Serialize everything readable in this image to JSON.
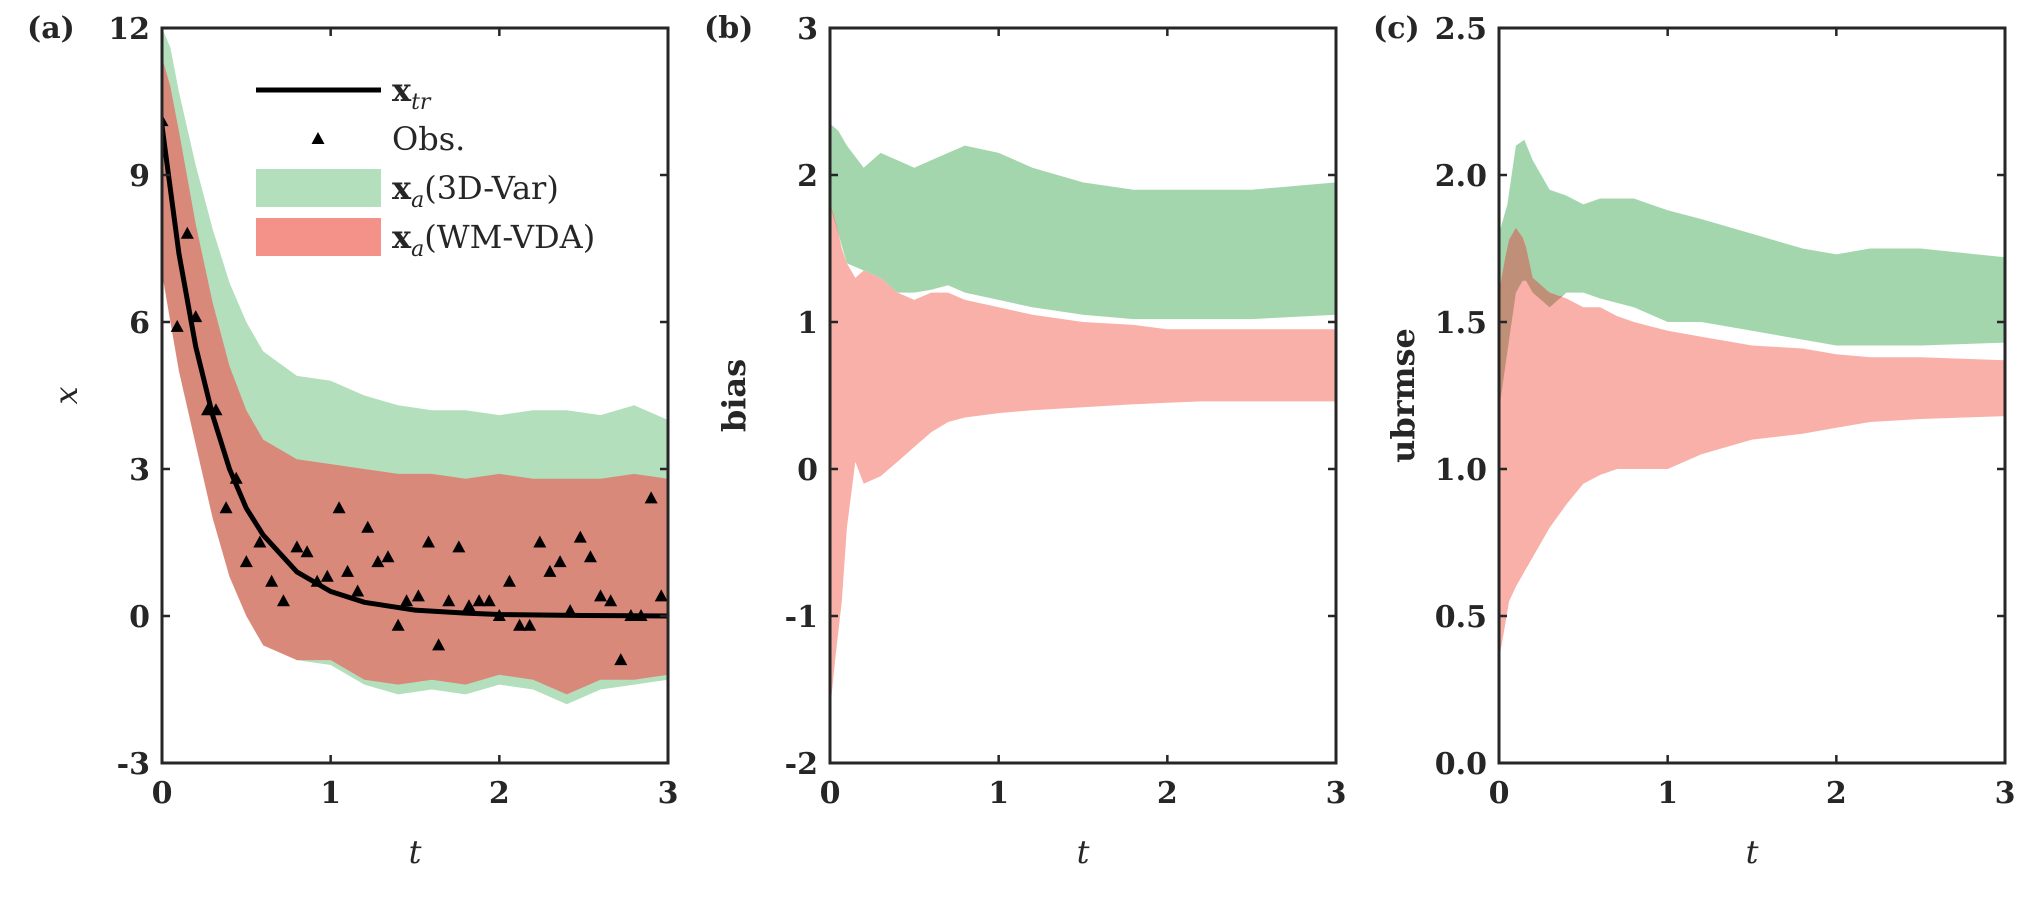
{
  "chart_data": [
    {
      "panel": "(a)",
      "type": "area",
      "xlabel": "t",
      "ylabel": "x",
      "xlim": [
        0,
        3
      ],
      "ylim": [
        -3,
        12
      ],
      "xticks": [
        "0",
        "1",
        "2",
        "3"
      ],
      "yticks": [
        "-3",
        "0",
        "3",
        "6",
        "9",
        "12"
      ],
      "legend": [
        {
          "key": "xtr",
          "text": "x",
          "sub": "tr",
          "color": "#000000"
        },
        {
          "key": "obs",
          "text": "Obs.",
          "color": "#000000"
        },
        {
          "key": "3dvar",
          "text": "x",
          "sub": "a",
          "suffix": "(3D-Var)",
          "color": "#b3dfbc"
        },
        {
          "key": "wmvda",
          "text": "x",
          "sub": "a",
          "suffix": "(WM-VDA)",
          "color": "#f4928a"
        }
      ],
      "series": [
        {
          "name": "x_a(3D-Var)",
          "kind": "band",
          "color": "#b3dfbc",
          "x": [
            0,
            0.05,
            0.1,
            0.2,
            0.3,
            0.4,
            0.5,
            0.6,
            0.8,
            1.0,
            1.2,
            1.4,
            1.6,
            1.8,
            2.0,
            2.2,
            2.4,
            2.6,
            2.8,
            3.0
          ],
          "upper": [
            12,
            11.6,
            10.7,
            9.2,
            7.9,
            6.8,
            6.0,
            5.4,
            4.9,
            4.8,
            4.5,
            4.3,
            4.2,
            4.2,
            4.1,
            4.2,
            4.2,
            4.1,
            4.3,
            4.0
          ],
          "lower": [
            7.4,
            6.4,
            5.4,
            3.8,
            2.4,
            1.2,
            0.2,
            -0.5,
            -0.9,
            -1.0,
            -1.4,
            -1.6,
            -1.5,
            -1.6,
            -1.4,
            -1.5,
            -1.8,
            -1.5,
            -1.4,
            -1.3
          ]
        },
        {
          "name": "x_a(WM-VDA)",
          "kind": "band",
          "color": "#d9897a",
          "x": [
            0,
            0.05,
            0.1,
            0.2,
            0.3,
            0.4,
            0.5,
            0.6,
            0.8,
            1.0,
            1.2,
            1.4,
            1.6,
            1.8,
            2.0,
            2.2,
            2.4,
            2.6,
            2.8,
            3.0
          ],
          "upper": [
            11.4,
            10.8,
            9.9,
            8.0,
            6.4,
            5.1,
            4.2,
            3.6,
            3.2,
            3.1,
            3.0,
            2.9,
            2.9,
            2.8,
            2.9,
            2.8,
            2.8,
            2.8,
            2.9,
            2.8
          ],
          "lower": [
            7.0,
            6.0,
            5.0,
            3.5,
            2.0,
            0.8,
            0.0,
            -0.6,
            -0.9,
            -0.9,
            -1.3,
            -1.4,
            -1.3,
            -1.4,
            -1.2,
            -1.3,
            -1.6,
            -1.3,
            -1.3,
            -1.2
          ]
        },
        {
          "name": "x_tr",
          "kind": "line",
          "color": "#000000",
          "x": [
            0,
            0.1,
            0.2,
            0.3,
            0.4,
            0.5,
            0.6,
            0.8,
            1.0,
            1.2,
            1.5,
            1.8,
            2.0,
            2.5,
            3.0
          ],
          "y": [
            10,
            7.4,
            5.5,
            4.1,
            3.0,
            2.2,
            1.65,
            0.9,
            0.5,
            0.28,
            0.12,
            0.06,
            0.03,
            0.01,
            0.0
          ]
        },
        {
          "name": "Obs.",
          "kind": "scatter",
          "color": "#000000",
          "x": [
            0.0,
            0.09,
            0.15,
            0.2,
            0.27,
            0.32,
            0.38,
            0.44,
            0.5,
            0.58,
            0.65,
            0.72,
            0.8,
            0.86,
            0.92,
            0.98,
            1.05,
            1.1,
            1.16,
            1.22,
            1.28,
            1.34,
            1.4,
            1.45,
            1.52,
            1.58,
            1.64,
            1.7,
            1.76,
            1.82,
            1.88,
            1.94,
            2.0,
            2.06,
            2.12,
            2.18,
            2.24,
            2.3,
            2.36,
            2.42,
            2.48,
            2.54,
            2.6,
            2.66,
            2.72,
            2.78,
            2.84,
            2.9,
            2.96
          ],
          "y": [
            10.1,
            5.9,
            7.8,
            6.1,
            4.2,
            4.2,
            2.2,
            2.8,
            1.1,
            1.5,
            0.7,
            0.3,
            1.4,
            1.3,
            0.7,
            0.8,
            2.2,
            0.9,
            0.5,
            1.8,
            1.1,
            1.2,
            -0.2,
            0.3,
            0.4,
            1.5,
            -0.6,
            0.3,
            1.4,
            0.2,
            0.3,
            0.3,
            0.0,
            0.7,
            -0.2,
            -0.2,
            1.5,
            0.9,
            1.1,
            0.1,
            1.6,
            1.2,
            0.4,
            0.3,
            -0.9,
            0.0,
            0.0,
            2.4,
            0.4
          ]
        }
      ]
    },
    {
      "panel": "(b)",
      "type": "area",
      "xlabel": "t",
      "ylabel": "bias",
      "xlim": [
        0,
        3
      ],
      "ylim": [
        -2,
        3
      ],
      "xticks": [
        "0",
        "1",
        "2",
        "3"
      ],
      "yticks": [
        "-2",
        "-1",
        "0",
        "1",
        "2",
        "3"
      ],
      "series": [
        {
          "name": "3D-Var",
          "kind": "band",
          "color": "#a3d6ad",
          "x": [
            0,
            0.05,
            0.1,
            0.2,
            0.3,
            0.4,
            0.5,
            0.6,
            0.7,
            0.8,
            1.0,
            1.2,
            1.5,
            1.8,
            2.0,
            2.5,
            3.0
          ],
          "upper": [
            2.35,
            2.3,
            2.2,
            2.05,
            2.15,
            2.1,
            2.05,
            2.1,
            2.15,
            2.2,
            2.15,
            2.05,
            1.95,
            1.9,
            1.9,
            1.9,
            1.95
          ],
          "lower": [
            1.8,
            1.6,
            1.4,
            1.35,
            1.3,
            1.2,
            1.2,
            1.22,
            1.25,
            1.2,
            1.15,
            1.1,
            1.05,
            1.02,
            1.02,
            1.02,
            1.05
          ]
        },
        {
          "name": "WM-VDA",
          "kind": "band",
          "color": "#f8b0a9",
          "x": [
            0,
            0.03,
            0.07,
            0.1,
            0.15,
            0.2,
            0.3,
            0.4,
            0.5,
            0.6,
            0.7,
            0.8,
            1.0,
            1.2,
            1.5,
            1.8,
            2.0,
            2.2,
            2.5,
            3.0
          ],
          "upper": [
            1.8,
            1.7,
            1.5,
            1.4,
            1.3,
            1.35,
            1.3,
            1.2,
            1.15,
            1.2,
            1.2,
            1.15,
            1.1,
            1.05,
            1.0,
            0.98,
            0.95,
            0.95,
            0.95,
            0.95
          ],
          "lower": [
            -1.65,
            -1.3,
            -0.9,
            -0.4,
            0.05,
            -0.1,
            -0.05,
            0.05,
            0.15,
            0.25,
            0.32,
            0.35,
            0.38,
            0.4,
            0.42,
            0.44,
            0.45,
            0.46,
            0.46,
            0.46
          ]
        }
      ]
    },
    {
      "panel": "(c)",
      "type": "area",
      "xlabel": "t",
      "ylabel": "ubrmse",
      "xlim": [
        0,
        3
      ],
      "ylim": [
        0,
        2.5
      ],
      "xticks": [
        "0",
        "1",
        "2",
        "3"
      ],
      "yticks": [
        "0.0",
        "0.5",
        "1.0",
        "1.5",
        "2.0",
        "2.5"
      ],
      "series": [
        {
          "name": "3D-Var",
          "kind": "band",
          "color": "#a3d6ad",
          "x": [
            0,
            0.05,
            0.1,
            0.15,
            0.2,
            0.3,
            0.4,
            0.5,
            0.6,
            0.8,
            1.0,
            1.2,
            1.5,
            1.8,
            2.0,
            2.2,
            2.5,
            3.0
          ],
          "upper": [
            1.8,
            1.9,
            2.1,
            2.12,
            2.05,
            1.95,
            1.93,
            1.9,
            1.92,
            1.92,
            1.88,
            1.85,
            1.8,
            1.75,
            1.73,
            1.75,
            1.75,
            1.72
          ],
          "lower": [
            1.2,
            1.4,
            1.6,
            1.65,
            1.6,
            1.55,
            1.6,
            1.6,
            1.58,
            1.55,
            1.5,
            1.5,
            1.47,
            1.44,
            1.42,
            1.42,
            1.42,
            1.43
          ]
        },
        {
          "name": "WM-VDA",
          "kind": "band",
          "color": "#f8b0a9",
          "x": [
            0,
            0.03,
            0.06,
            0.1,
            0.15,
            0.2,
            0.3,
            0.4,
            0.5,
            0.6,
            0.7,
            0.8,
            1.0,
            1.2,
            1.5,
            1.8,
            2.0,
            2.2,
            2.5,
            3.0
          ],
          "upper": [
            1.6,
            1.7,
            1.78,
            1.82,
            1.78,
            1.65,
            1.6,
            1.58,
            1.55,
            1.55,
            1.52,
            1.5,
            1.47,
            1.45,
            1.42,
            1.41,
            1.39,
            1.38,
            1.38,
            1.37
          ],
          "lower": [
            0.35,
            0.45,
            0.55,
            0.6,
            0.65,
            0.7,
            0.8,
            0.88,
            0.95,
            0.98,
            1.0,
            1.0,
            1.0,
            1.05,
            1.1,
            1.12,
            1.14,
            1.16,
            1.17,
            1.18
          ]
        }
      ]
    }
  ]
}
